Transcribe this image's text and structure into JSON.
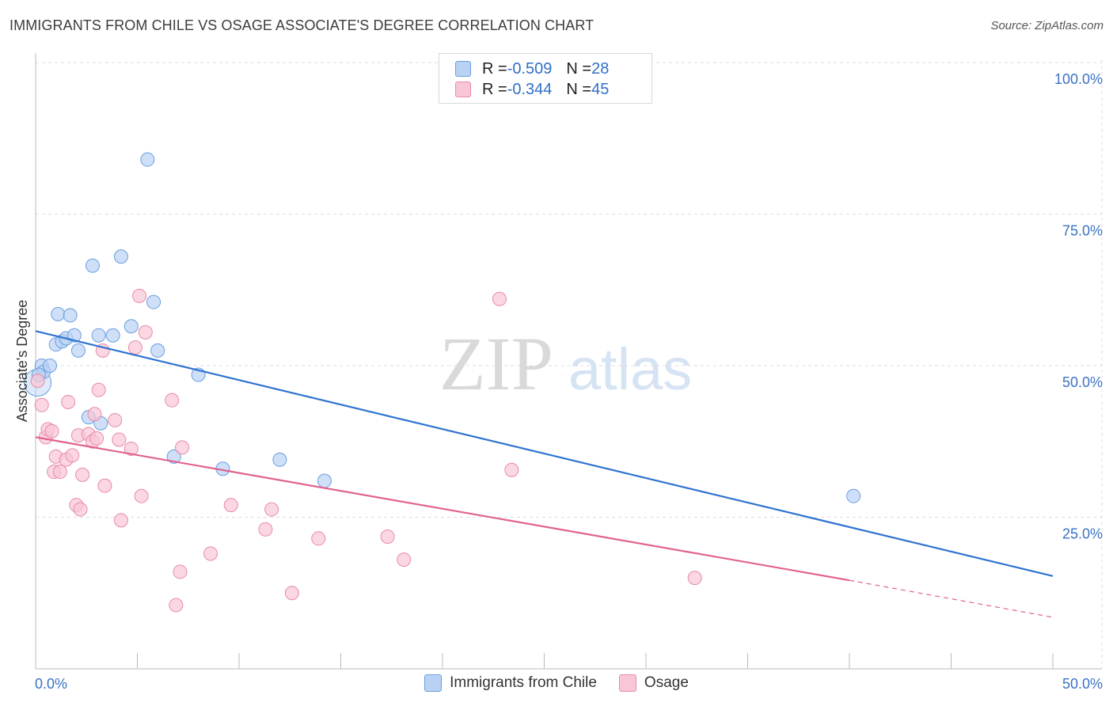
{
  "title": "IMMIGRANTS FROM CHILE VS OSAGE ASSOCIATE'S DEGREE CORRELATION CHART",
  "source": "Source: ZipAtlas.com",
  "watermark": {
    "zip": "ZIP",
    "atlas": "atlas"
  },
  "legend_top": [
    {
      "r_label": "R = ",
      "r_value": "-0.509",
      "n_label": "N = ",
      "n_value": "28"
    },
    {
      "r_label": "R = ",
      "r_value": "-0.344",
      "n_label": "N = ",
      "n_value": "45"
    }
  ],
  "colors": {
    "blue_fill": "#b9d2f3",
    "blue_stroke": "#6a9fe0",
    "blue_line": "#2f73d0",
    "pink_fill": "#f8c6d6",
    "pink_stroke": "#e98aa9",
    "pink_line": "#e0628e",
    "tick_label": "#3a72c4"
  },
  "chart_data": {
    "type": "scatter",
    "title": "IMMIGRANTS FROM CHILE VS OSAGE ASSOCIATE'S DEGREE CORRELATION CHART",
    "xlabel": "",
    "ylabel": "Associate's Degree",
    "xlim": [
      0,
      50
    ],
    "ylim": [
      0,
      100
    ],
    "x_tick_labels": [
      "0.0%",
      "50.0%"
    ],
    "y_ticks": [
      25,
      50,
      75,
      100
    ],
    "y_tick_labels": [
      "25.0%",
      "50.0%",
      "75.0%",
      "100.0%"
    ],
    "grid": true,
    "series": [
      {
        "name": "Immigrants from Chile",
        "color": "blue",
        "points": [
          [
            0.1,
            47.2
          ],
          [
            0.3,
            50.0
          ],
          [
            0.4,
            49.0
          ],
          [
            0.7,
            50.0
          ],
          [
            1.0,
            53.5
          ],
          [
            1.1,
            58.5
          ],
          [
            1.3,
            54.0
          ],
          [
            1.5,
            54.5
          ],
          [
            1.7,
            58.3
          ],
          [
            1.9,
            55.0
          ],
          [
            2.1,
            52.5
          ],
          [
            2.6,
            41.5
          ],
          [
            2.8,
            66.5
          ],
          [
            3.1,
            55.0
          ],
          [
            3.2,
            40.5
          ],
          [
            3.8,
            55.0
          ],
          [
            4.2,
            68.0
          ],
          [
            4.7,
            56.5
          ],
          [
            5.5,
            84.0
          ],
          [
            5.8,
            60.5
          ],
          [
            6.0,
            52.5
          ],
          [
            6.8,
            35.0
          ],
          [
            8.0,
            48.5
          ],
          [
            9.2,
            33.0
          ],
          [
            12.0,
            34.5
          ],
          [
            14.2,
            31.0
          ],
          [
            40.2,
            28.5
          ],
          [
            0.15,
            48.5
          ]
        ],
        "trend": {
          "x0": 0,
          "y0": 55.7,
          "x1": 50,
          "y1": 15.3
        }
      },
      {
        "name": "Osage",
        "color": "pink",
        "points": [
          [
            0.1,
            47.5
          ],
          [
            0.3,
            43.5
          ],
          [
            0.5,
            38.2
          ],
          [
            0.6,
            39.5
          ],
          [
            0.8,
            39.2
          ],
          [
            0.9,
            32.5
          ],
          [
            1.0,
            35.0
          ],
          [
            1.2,
            32.5
          ],
          [
            1.5,
            34.5
          ],
          [
            1.6,
            44.0
          ],
          [
            1.8,
            35.2
          ],
          [
            2.0,
            27.0
          ],
          [
            2.1,
            38.5
          ],
          [
            2.2,
            26.3
          ],
          [
            2.3,
            32.0
          ],
          [
            2.6,
            38.7
          ],
          [
            2.8,
            37.5
          ],
          [
            2.9,
            42.0
          ],
          [
            3.0,
            38.0
          ],
          [
            3.1,
            46.0
          ],
          [
            3.3,
            52.5
          ],
          [
            3.4,
            30.2
          ],
          [
            3.9,
            41.0
          ],
          [
            4.1,
            37.8
          ],
          [
            4.2,
            24.5
          ],
          [
            4.7,
            36.3
          ],
          [
            4.9,
            53.0
          ],
          [
            5.1,
            61.5
          ],
          [
            5.2,
            28.5
          ],
          [
            5.4,
            55.5
          ],
          [
            6.7,
            44.3
          ],
          [
            6.9,
            10.5
          ],
          [
            7.1,
            16.0
          ],
          [
            7.2,
            36.5
          ],
          [
            8.6,
            19.0
          ],
          [
            9.6,
            27.0
          ],
          [
            11.3,
            23.0
          ],
          [
            11.6,
            26.3
          ],
          [
            12.6,
            12.5
          ],
          [
            13.9,
            21.5
          ],
          [
            17.3,
            21.8
          ],
          [
            18.1,
            18.0
          ],
          [
            22.8,
            61.0
          ],
          [
            23.4,
            32.8
          ],
          [
            32.4,
            15.0
          ]
        ],
        "trend": {
          "x0": 0,
          "y0": 38.2,
          "x1": 40.0,
          "y1": 14.6
        },
        "trend_dashed": {
          "x0": 40.0,
          "y0": 14.6,
          "x1": 50,
          "y1": 8.5
        }
      }
    ]
  }
}
